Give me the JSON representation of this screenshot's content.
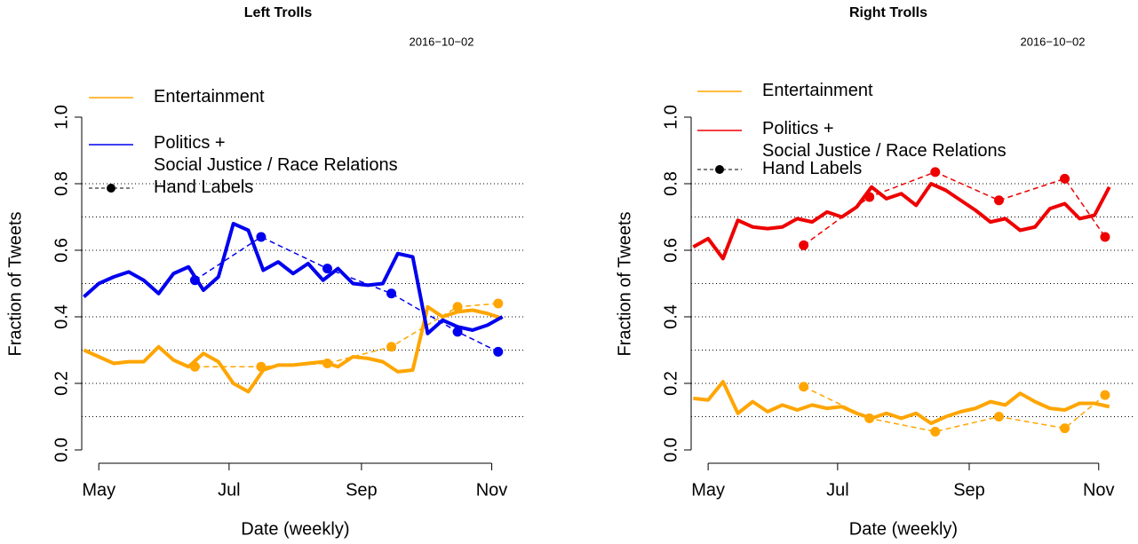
{
  "chart_data": [
    {
      "type": "line",
      "title": "Left Trolls",
      "subtitle": "2016−10−02",
      "xlabel": "Date (weekly)",
      "ylabel": "Fraction of Tweets",
      "x": [
        115,
        122,
        129,
        136,
        143,
        150,
        157,
        164,
        171,
        178,
        185,
        192,
        199,
        206,
        213,
        220,
        227,
        234,
        241,
        248,
        255,
        262,
        269,
        276,
        283,
        290,
        297,
        304,
        311
      ],
      "xlim": [
        114,
        322
      ],
      "xticks": [
        {
          "value": 122,
          "label": "May"
        },
        {
          "value": 183,
          "label": "Jul"
        },
        {
          "value": 245,
          "label": "Sep"
        },
        {
          "value": 306,
          "label": "Nov"
        }
      ],
      "ylim": [
        0,
        1
      ],
      "yticks": [
        {
          "value": 0,
          "label": "0.0"
        },
        0.2,
        0.4,
        0.6,
        0.8,
        {
          "value": 1,
          "label": "1.0"
        }
      ],
      "grid_lines": [
        0.1,
        0.2,
        0.3,
        0.4,
        0.5,
        0.6,
        0.7,
        0.8
      ],
      "series": [
        {
          "name": "Entertainment",
          "color": "#ffa500",
          "values": [
            0.3,
            0.28,
            0.26,
            0.265,
            0.265,
            0.31,
            0.27,
            0.25,
            0.29,
            0.265,
            0.2,
            0.175,
            0.24,
            0.255,
            0.255,
            0.26,
            0.265,
            0.25,
            0.28,
            0.275,
            0.265,
            0.235,
            0.24,
            0.43,
            0.4,
            0.415,
            0.42,
            0.41,
            0.395
          ]
        },
        {
          "name": "Politics +\nSocial Justice / Race Relations",
          "color": "#0000ee",
          "values": [
            0.46,
            0.5,
            0.52,
            0.535,
            0.51,
            0.47,
            0.53,
            0.55,
            0.48,
            0.52,
            0.68,
            0.66,
            0.54,
            0.565,
            0.53,
            0.56,
            0.51,
            0.545,
            0.5,
            0.495,
            0.5,
            0.59,
            0.58,
            0.35,
            0.39,
            0.37,
            0.36,
            0.375,
            0.4
          ]
        }
      ],
      "hand_labels": {
        "name": "Hand Labels",
        "x": [
          167,
          198,
          229,
          259,
          290,
          309
        ],
        "series": [
          {
            "values": [
              0.25,
              0.25,
              0.26,
              0.31,
              0.43,
              0.44
            ]
          },
          {
            "values": [
              0.51,
              0.64,
              0.545,
              0.47,
              0.355,
              0.295
            ]
          }
        ]
      }
    },
    {
      "type": "line",
      "title": "Right Trolls",
      "subtitle": "2016−10−02",
      "xlabel": "Date (weekly)",
      "ylabel": "Fraction of Tweets",
      "x": [
        115,
        122,
        129,
        136,
        143,
        150,
        157,
        164,
        171,
        178,
        185,
        192,
        199,
        206,
        213,
        220,
        227,
        234,
        241,
        248,
        255,
        262,
        269,
        276,
        283,
        290,
        297,
        304,
        311
      ],
      "xlim": [
        114,
        322
      ],
      "xticks": [
        {
          "value": 122,
          "label": "May"
        },
        {
          "value": 183,
          "label": "Jul"
        },
        {
          "value": 245,
          "label": "Sep"
        },
        {
          "value": 306,
          "label": "Nov"
        }
      ],
      "ylim": [
        0,
        1
      ],
      "yticks": [
        {
          "value": 0,
          "label": "0.0"
        },
        0.2,
        0.4,
        0.6,
        0.8,
        {
          "value": 1,
          "label": "1.0"
        }
      ],
      "grid_lines": [
        0.1,
        0.2,
        0.3,
        0.4,
        0.5,
        0.6,
        0.7,
        0.8
      ],
      "series": [
        {
          "name": "Entertainment",
          "color": "#ffa500",
          "values": [
            0.155,
            0.15,
            0.205,
            0.11,
            0.145,
            0.115,
            0.135,
            0.12,
            0.135,
            0.125,
            0.13,
            0.11,
            0.095,
            0.11,
            0.095,
            0.11,
            0.08,
            0.1,
            0.115,
            0.125,
            0.145,
            0.135,
            0.17,
            0.145,
            0.125,
            0.12,
            0.14,
            0.14,
            0.13
          ]
        },
        {
          "name": "Politics +\nSocial Justice / Race Relations",
          "color": "#ee0000",
          "values": [
            0.61,
            0.635,
            0.575,
            0.69,
            0.67,
            0.665,
            0.67,
            0.695,
            0.685,
            0.715,
            0.7,
            0.73,
            0.79,
            0.755,
            0.77,
            0.735,
            0.8,
            0.78,
            0.75,
            0.72,
            0.685,
            0.695,
            0.66,
            0.67,
            0.725,
            0.74,
            0.695,
            0.705,
            0.79
          ]
        }
      ],
      "hand_labels": {
        "name": "Hand Labels",
        "x": [
          167,
          198,
          229,
          259,
          290,
          309
        ],
        "series": [
          {
            "values": [
              0.19,
              0.095,
              0.055,
              0.1,
              0.065,
              0.165
            ]
          },
          {
            "values": [
              0.615,
              0.76,
              0.835,
              0.75,
              0.815,
              0.64
            ]
          }
        ]
      }
    }
  ]
}
